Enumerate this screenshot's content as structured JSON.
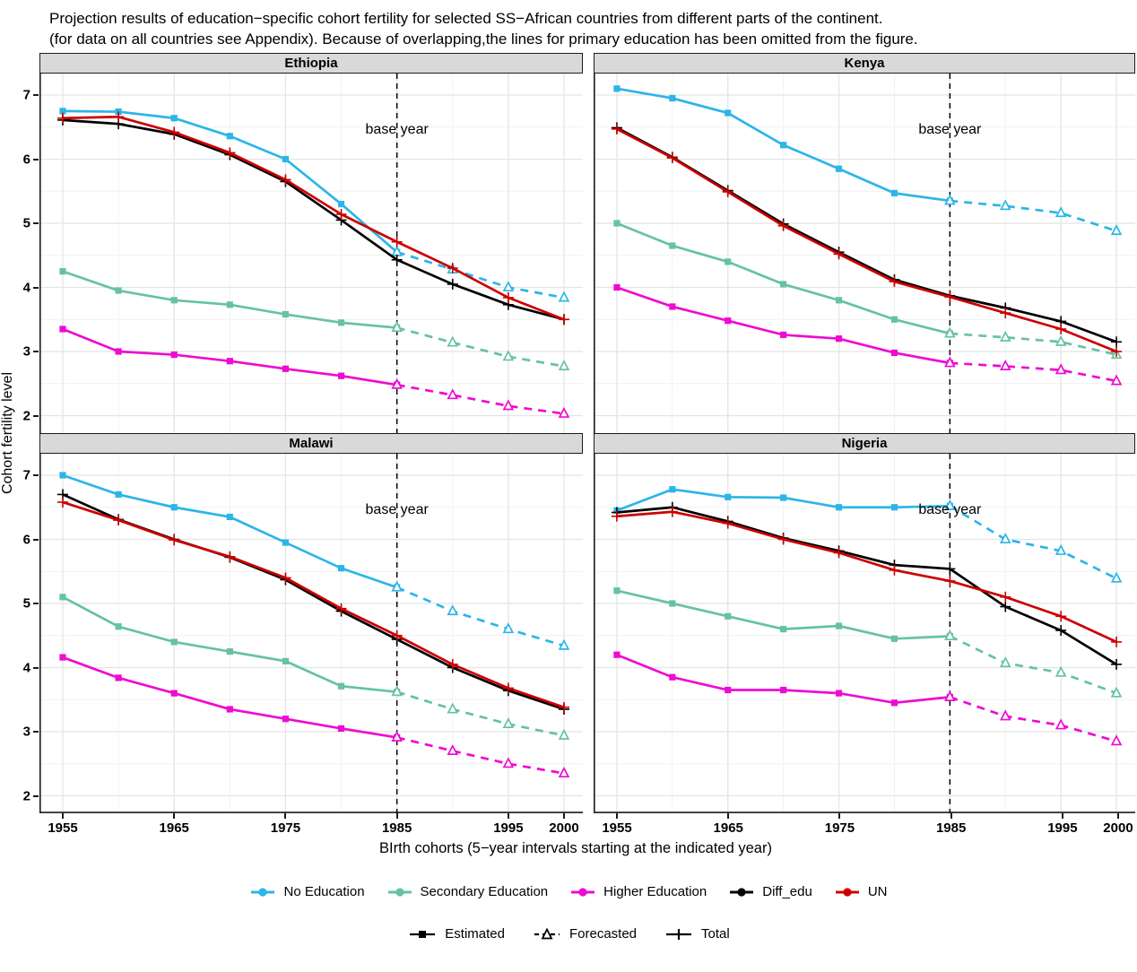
{
  "title": {
    "line1": "Projection results of education−specific cohort fertility for selected SS−African countries from different parts of the continent.",
    "line2": "(for data on all countries see Appendix). Because of overlapping,the lines for primary education has been omitted from the figure."
  },
  "axes": {
    "y_label": "Cohort fertility level",
    "x_label": "BIrth cohorts (5−year intervals starting at the indicated year)",
    "y_ticks": [
      7,
      6,
      5,
      4,
      3,
      2
    ],
    "x_ticks": [
      1955,
      1965,
      1975,
      1985,
      1995,
      2000
    ],
    "x_minor": [
      1960,
      1970,
      1980,
      1990
    ],
    "y_minor": [
      6.5,
      5.5,
      4.5,
      3.5,
      2.5
    ],
    "ylim": [
      1.7,
      7.3
    ],
    "xlim": [
      1953,
      2002
    ],
    "grid": true,
    "legend_position": "bottom"
  },
  "annotations": {
    "base_year_label": "base year",
    "base_year_x": 1985
  },
  "colors": {
    "no_education": "#2CB5E8",
    "secondary_education": "#66C2A5",
    "higher_education": "#EE0BD2",
    "diff_edu": "#000000",
    "un": "#CC0000",
    "strip_bg": "#D9D9D9",
    "grid_major": "#E4E4E4",
    "grid_minor": "#F1F1F1",
    "axis": "#1a1a1a"
  },
  "legend_series": [
    {
      "label": "No Education",
      "series": "no_education"
    },
    {
      "label": "Secondary Education",
      "series": "secondary_education"
    },
    {
      "label": "Higher Education",
      "series": "higher_education"
    },
    {
      "label": "Diff_edu",
      "series": "diff_edu"
    },
    {
      "label": "UN",
      "series": "un"
    }
  ],
  "legend_linetype": [
    {
      "label": "Estimated",
      "marker": "square",
      "dash": false
    },
    {
      "label": "Forecasted",
      "marker": "triangle",
      "dash": true
    },
    {
      "label": "Total",
      "marker": "plus",
      "dash": false
    }
  ],
  "chart_data": {
    "type": "line",
    "years_estimated": [
      1955,
      1960,
      1965,
      1970,
      1975,
      1980,
      1985
    ],
    "years_forecasted": [
      1985,
      1990,
      1995,
      2000
    ],
    "years_total": [
      1955,
      1960,
      1965,
      1970,
      1975,
      1980,
      1985,
      1990,
      1995,
      2000
    ],
    "panels": [
      {
        "title": "Ethiopia",
        "series": {
          "no_education": {
            "estimated": [
              6.75,
              6.74,
              6.64,
              6.36,
              6.0,
              5.3,
              4.55
            ],
            "forecasted": [
              4.55,
              4.28,
              4.0,
              3.84
            ]
          },
          "secondary_education": {
            "estimated": [
              4.25,
              3.95,
              3.8,
              3.73,
              3.58,
              3.45,
              3.37
            ],
            "forecasted": [
              3.37,
              3.14,
              2.92,
              2.77
            ]
          },
          "higher_education": {
            "estimated": [
              3.35,
              3.0,
              2.95,
              2.85,
              2.73,
              2.62,
              2.48
            ],
            "forecasted": [
              2.48,
              2.32,
              2.15,
              2.03
            ]
          },
          "diff_edu": {
            "total": [
              6.61,
              6.55,
              6.39,
              6.07,
              5.65,
              5.05,
              4.43,
              4.05,
              3.73,
              3.5
            ]
          },
          "un": {
            "total": [
              6.64,
              6.66,
              6.42,
              6.1,
              5.68,
              5.14,
              4.71,
              4.3,
              3.84,
              3.5
            ]
          }
        }
      },
      {
        "title": "Kenya",
        "series": {
          "no_education": {
            "estimated": [
              7.1,
              6.95,
              6.72,
              6.22,
              5.85,
              5.47,
              5.35
            ],
            "forecasted": [
              5.35,
              5.27,
              5.16,
              4.88
            ]
          },
          "secondary_education": {
            "estimated": [
              5.0,
              4.65,
              4.4,
              4.05,
              3.8,
              3.5,
              3.28
            ],
            "forecasted": [
              3.28,
              3.22,
              3.15,
              2.95
            ]
          },
          "higher_education": {
            "estimated": [
              4.0,
              3.7,
              3.48,
              3.26,
              3.2,
              2.98,
              2.82
            ],
            "forecasted": [
              2.82,
              2.77,
              2.71,
              2.54
            ]
          },
          "diff_edu": {
            "total": [
              6.49,
              6.03,
              5.51,
              4.99,
              4.55,
              4.12,
              3.87,
              3.68,
              3.47,
              3.15
            ]
          },
          "un": {
            "total": [
              6.47,
              6.02,
              5.49,
              4.96,
              4.52,
              4.09,
              3.85,
              3.6,
              3.35,
              3.0
            ]
          }
        }
      },
      {
        "title": "Malawi",
        "series": {
          "no_education": {
            "estimated": [
              7.0,
              6.7,
              6.5,
              6.35,
              5.95,
              5.55,
              5.25
            ],
            "forecasted": [
              5.25,
              4.88,
              4.6,
              4.34
            ]
          },
          "secondary_education": {
            "estimated": [
              5.1,
              4.64,
              4.4,
              4.25,
              4.1,
              3.71,
              3.62
            ],
            "forecasted": [
              3.62,
              3.35,
              3.12,
              2.94
            ]
          },
          "higher_education": {
            "estimated": [
              4.16,
              3.84,
              3.6,
              3.35,
              3.2,
              3.05,
              2.91
            ],
            "forecasted": [
              2.91,
              2.7,
              2.5,
              2.35
            ]
          },
          "diff_edu": {
            "total": [
              6.7,
              6.31,
              6.0,
              5.72,
              5.37,
              4.88,
              4.44,
              4.0,
              3.64,
              3.35
            ]
          },
          "un": {
            "total": [
              6.58,
              6.3,
              5.99,
              5.73,
              5.4,
              4.92,
              4.5,
              4.05,
              3.68,
              3.38
            ]
          }
        }
      },
      {
        "title": "Nigeria",
        "series": {
          "no_education": {
            "estimated": [
              6.45,
              6.78,
              6.66,
              6.65,
              6.5,
              6.5,
              6.52
            ],
            "forecasted": [
              6.52,
              6.0,
              5.82,
              5.39
            ]
          },
          "secondary_education": {
            "estimated": [
              5.2,
              5.0,
              4.8,
              4.6,
              4.65,
              4.45,
              4.49
            ],
            "forecasted": [
              4.49,
              4.07,
              3.92,
              3.6
            ]
          },
          "higher_education": {
            "estimated": [
              4.2,
              3.85,
              3.65,
              3.65,
              3.6,
              3.45,
              3.54
            ],
            "forecasted": [
              3.54,
              3.24,
              3.1,
              2.85
            ]
          },
          "diff_edu": {
            "total": [
              6.42,
              6.5,
              6.28,
              6.02,
              5.82,
              5.6,
              5.54,
              4.95,
              4.58,
              4.05
            ]
          },
          "un": {
            "total": [
              6.36,
              6.43,
              6.25,
              6.0,
              5.79,
              5.52,
              5.35,
              5.1,
              4.8,
              4.4
            ]
          }
        }
      }
    ]
  }
}
